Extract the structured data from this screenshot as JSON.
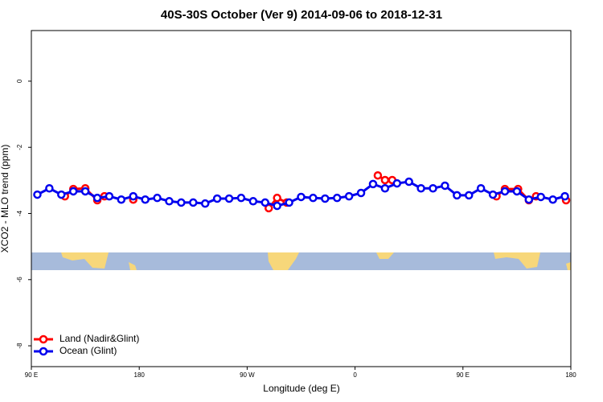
{
  "chart_data": {
    "type": "line",
    "title": "40S-30S October (Ver 9)   2014-09-06 to 2018-12-31",
    "x_label": "Longitude (deg E)",
    "y_label": "XCO2 - MLO trend (ppm)",
    "xlim": [
      90,
      540
    ],
    "xticks": [
      {
        "value": 90,
        "label": "90 E"
      },
      {
        "value": 180,
        "label": "180"
      },
      {
        "value": 270,
        "label": "90 W"
      },
      {
        "value": 360,
        "label": "0"
      },
      {
        "value": 450,
        "label": "90 E"
      },
      {
        "value": 540,
        "label": "180"
      }
    ],
    "ylim": [
      -8.63,
      1.53
    ],
    "yticks": [
      0,
      -2,
      -4,
      -6,
      -8
    ],
    "legend": "bottom-left",
    "series": [
      {
        "name": "Land (Nadir&Glint)",
        "color": "#ff0000",
        "x": [
          118,
          125,
          135,
          145,
          151,
          null,
          175,
          null,
          288,
          295,
          303,
          null,
          379,
          385,
          391,
          null,
          478,
          485,
          496,
          505,
          511,
          null,
          536
        ],
        "values": [
          -3.48,
          -3.26,
          -3.24,
          -3.6,
          -3.48,
          null,
          -3.58,
          null,
          -3.84,
          -3.53,
          -3.67,
          null,
          -2.85,
          -2.99,
          -2.99,
          null,
          -3.48,
          -3.26,
          -3.26,
          -3.6,
          -3.48,
          null,
          -3.6
        ]
      },
      {
        "name": "Ocean (Glint)",
        "color": "#0000ee",
        "x": [
          95,
          105,
          115,
          125,
          135,
          145,
          155,
          165,
          175,
          185,
          195,
          205,
          215,
          225,
          235,
          245,
          255,
          265,
          275,
          285,
          295,
          305,
          315,
          325,
          335,
          345,
          355,
          365,
          375,
          385,
          395,
          405,
          415,
          425,
          435,
          445,
          455,
          465,
          475,
          485,
          495,
          505,
          515,
          525,
          535
        ],
        "values": [
          -3.43,
          -3.24,
          -3.43,
          -3.33,
          -3.33,
          -3.53,
          -3.48,
          -3.58,
          -3.48,
          -3.58,
          -3.53,
          -3.63,
          -3.67,
          -3.67,
          -3.7,
          -3.55,
          -3.55,
          -3.53,
          -3.63,
          -3.67,
          -3.77,
          -3.67,
          -3.5,
          -3.53,
          -3.55,
          -3.53,
          -3.48,
          -3.38,
          -3.11,
          -3.24,
          -3.09,
          -3.04,
          -3.24,
          -3.24,
          -3.16,
          -3.45,
          -3.45,
          -3.24,
          -3.43,
          -3.33,
          -3.33,
          -3.58,
          -3.5,
          -3.58,
          -3.48
        ]
      }
    ]
  }
}
